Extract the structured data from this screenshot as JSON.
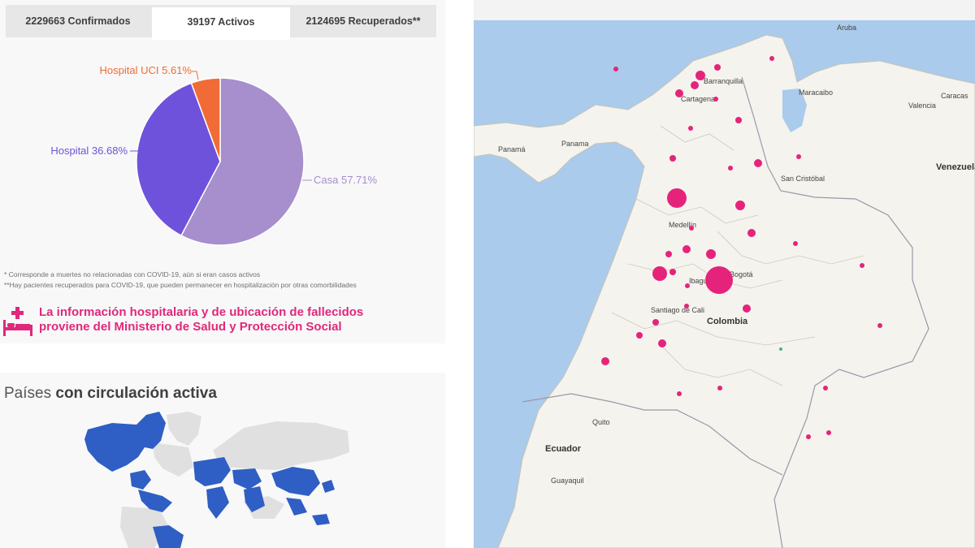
{
  "tabs": [
    {
      "label": "2229663 Confirmados",
      "active": false
    },
    {
      "label": "39197 Activos",
      "active": true
    },
    {
      "label": "2124695 Recuperados**",
      "active": false
    }
  ],
  "chart_data": {
    "type": "pie",
    "categories": [
      "Casa",
      "Hospital",
      "Hospital UCI"
    ],
    "values": [
      57.71,
      36.68,
      5.61
    ],
    "labels": [
      "Casa 57.71%",
      "Hospital 36.68%",
      "Hospital UCI 5.61%"
    ],
    "colors": [
      "#a68fcc",
      "#6f52dc",
      "#f06b36"
    ],
    "title": ""
  },
  "footnotes": [
    "* Corresponde a muertes no relacionadas con COVID-19, aún si eran casos activos",
    "**Hay pacientes recuperados para COVID-19, que pueden permanecer en hospitalización por otras comorbilidades"
  ],
  "notice": {
    "line1": "La información hospitalaria y de ubicación de fallecidos",
    "line2": "proviene del Ministerio de Salud y Protección Social",
    "color": "#e0287c",
    "icon": "hospital-bed-icon"
  },
  "countries_section": {
    "title_normal": "Países",
    "title_bold": "con circulación activa",
    "active_color": "#2f5ec4",
    "inactive_color": "#e0e0e0"
  },
  "map": {
    "bubble_color": "#e6237a",
    "water_color": "#aacbeb",
    "land_color": "#f4f3ee",
    "cities": [
      "Aruba",
      "Barranquilla",
      "Cartagena",
      "Maracaibo",
      "Caracas",
      "Valencia",
      "Panamá",
      "Panama",
      "San Cristóbal",
      "Medellín",
      "Bogotá",
      "Ibagué",
      "Santiago de Cali",
      "Quito",
      "Guayaquil"
    ],
    "countries": [
      "Venezuela",
      "Colombia",
      "Ecuador"
    ]
  }
}
